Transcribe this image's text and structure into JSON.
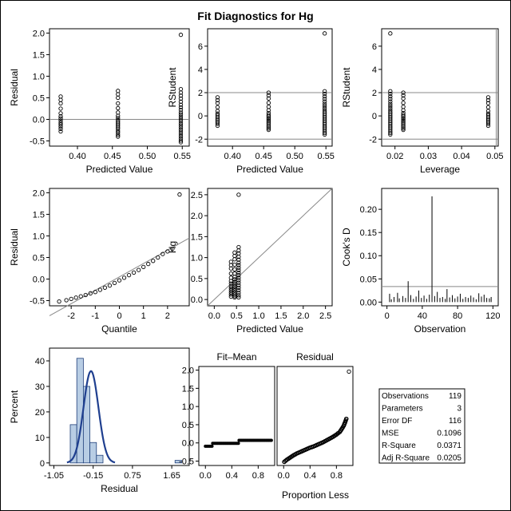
{
  "title": "Fit Diagnostics for Hg",
  "chart_data": [
    {
      "type": "scatter",
      "id": "residual_vs_predicted",
      "xlabel": "Predicted Value",
      "ylabel": "Residual",
      "xlim": [
        0.36,
        0.56
      ],
      "ylim": [
        -0.62,
        2.1
      ],
      "xticks": [
        "0.40",
        "0.45",
        "0.50",
        "0.55"
      ],
      "yticks": [
        "-0.5",
        "0.0",
        "0.5",
        "1.0",
        "1.5",
        "2.0"
      ],
      "reference_lines": {
        "y": [
          0
        ]
      },
      "groups": [
        {
          "x": 0.376,
          "y": [
            0.53,
            0.45,
            0.37,
            0.25,
            0.14,
            0.07,
            0.02,
            -0.03,
            -0.08,
            -0.12,
            -0.17,
            -0.22,
            -0.28
          ]
        },
        {
          "x": 0.458,
          "y": [
            0.66,
            0.58,
            0.5,
            0.37,
            0.26,
            0.16,
            0.08,
            0.03,
            -0.02,
            -0.06,
            -0.1,
            -0.14,
            -0.18,
            -0.22,
            -0.27,
            -0.31,
            -0.36,
            -0.4
          ]
        },
        {
          "x": 0.548,
          "y": [
            1.96,
            0.7,
            0.62,
            0.55,
            0.48,
            0.41,
            0.34,
            0.28,
            0.22,
            0.16,
            0.11,
            0.06,
            0.01,
            -0.04,
            -0.09,
            -0.14,
            -0.19,
            -0.24,
            -0.29,
            -0.34,
            -0.39,
            -0.44,
            -0.49,
            -0.53
          ]
        }
      ]
    },
    {
      "type": "scatter",
      "id": "rstudent_vs_predicted",
      "xlabel": "Predicted Value",
      "ylabel": "RStudent",
      "xlim": [
        0.36,
        0.56
      ],
      "ylim": [
        -2.6,
        7.5
      ],
      "xticks": [
        "0.40",
        "0.45",
        "0.50",
        "0.55"
      ],
      "yticks": [
        "-2",
        "0",
        "2",
        "4",
        "6"
      ],
      "reference_lines": {
        "y": [
          -2,
          2
        ]
      },
      "groups": [
        {
          "x": 0.376,
          "y": [
            1.6,
            1.35,
            1.1,
            0.75,
            0.42,
            0.2,
            0.05,
            -0.1,
            -0.25,
            -0.38,
            -0.52,
            -0.68,
            -0.85
          ]
        },
        {
          "x": 0.458,
          "y": [
            2.0,
            1.76,
            1.5,
            1.12,
            0.78,
            0.48,
            0.25,
            0.08,
            -0.05,
            -0.18,
            -0.3,
            -0.42,
            -0.55,
            -0.68,
            -0.82,
            -0.95,
            -1.08,
            -1.2
          ]
        },
        {
          "x": 0.548,
          "y": [
            7.1,
            2.12,
            1.9,
            1.68,
            1.46,
            1.24,
            1.03,
            0.85,
            0.67,
            0.49,
            0.33,
            0.18,
            0.03,
            -0.12,
            -0.27,
            -0.42,
            -0.57,
            -0.72,
            -0.87,
            -1.02,
            -1.17,
            -1.32,
            -1.47,
            -1.6
          ]
        }
      ]
    },
    {
      "type": "scatter",
      "id": "rstudent_vs_leverage",
      "xlabel": "Leverage",
      "ylabel": "RStudent",
      "xlim": [
        0.016,
        0.051
      ],
      "ylim": [
        -2.6,
        7.5
      ],
      "xticks": [
        "0.02",
        "0.03",
        "0.04",
        "0.05"
      ],
      "yticks": [
        "-2",
        "0",
        "2",
        "4",
        "6"
      ],
      "reference_lines": {
        "y": [
          -2,
          2
        ],
        "x": [
          0.0504
        ]
      },
      "groups": [
        {
          "x": 0.0186,
          "y": [
            7.1,
            2.12,
            1.9,
            1.68,
            1.46,
            1.24,
            1.03,
            0.85,
            0.67,
            0.49,
            0.33,
            0.18,
            0.03,
            -0.12,
            -0.27,
            -0.42,
            -0.57,
            -0.72,
            -0.87,
            -1.02,
            -1.17,
            -1.32,
            -1.47,
            -1.6
          ]
        },
        {
          "x": 0.0225,
          "y": [
            2.0,
            1.76,
            1.5,
            1.12,
            0.78,
            0.48,
            0.25,
            0.08,
            -0.05,
            -0.18,
            -0.3,
            -0.42,
            -0.55,
            -0.68,
            -0.82,
            -0.95,
            -1.08,
            -1.2
          ]
        },
        {
          "x": 0.048,
          "y": [
            1.6,
            1.35,
            1.1,
            0.75,
            0.42,
            0.2,
            0.05,
            -0.1,
            -0.25,
            -0.38,
            -0.52,
            -0.68,
            -0.85
          ]
        }
      ]
    },
    {
      "type": "scatter",
      "id": "residual_qq",
      "xlabel": "Quantile",
      "ylabel": "Residual",
      "xlim": [
        -2.9,
        2.9
      ],
      "ylim": [
        -0.62,
        2.1
      ],
      "xticks": [
        "-2",
        "-1",
        "0",
        "1",
        "2"
      ],
      "yticks": [
        "-0.5",
        "0.0",
        "0.5",
        "1.0",
        "1.5",
        "2.0"
      ],
      "reference_line": {
        "from": [
          -2.9,
          -0.85
        ],
        "to": [
          2.9,
          0.95
        ]
      },
      "points": [
        [
          -2.5,
          -0.52
        ],
        [
          -2.2,
          -0.49
        ],
        [
          -2.0,
          -0.46
        ],
        [
          -1.8,
          -0.43
        ],
        [
          -1.6,
          -0.4
        ],
        [
          -1.4,
          -0.37
        ],
        [
          -1.2,
          -0.33
        ],
        [
          -1.0,
          -0.3
        ],
        [
          -0.8,
          -0.25
        ],
        [
          -0.6,
          -0.2
        ],
        [
          -0.4,
          -0.15
        ],
        [
          -0.2,
          -0.09
        ],
        [
          0.0,
          -0.03
        ],
        [
          0.2,
          0.03
        ],
        [
          0.4,
          0.09
        ],
        [
          0.6,
          0.15
        ],
        [
          0.8,
          0.21
        ],
        [
          1.0,
          0.28
        ],
        [
          1.2,
          0.35
        ],
        [
          1.4,
          0.42
        ],
        [
          1.6,
          0.5
        ],
        [
          1.8,
          0.58
        ],
        [
          2.0,
          0.64
        ],
        [
          2.2,
          0.7
        ],
        [
          2.5,
          1.96
        ]
      ]
    },
    {
      "type": "scatter",
      "id": "observed_vs_predicted",
      "xlabel": "Predicted Value",
      "ylabel": "Hg",
      "xlim": [
        -0.15,
        2.65
      ],
      "ylim": [
        -0.15,
        2.65
      ],
      "xticks": [
        "0.0",
        "0.5",
        "1.0",
        "1.5",
        "2.0",
        "2.5"
      ],
      "yticks": [
        "0.0",
        "0.5",
        "1.0",
        "1.5",
        "2.0",
        "2.5"
      ],
      "reference_line": {
        "from": [
          -0.15,
          -0.15
        ],
        "to": [
          2.65,
          2.65
        ]
      },
      "groups": [
        {
          "x": 0.376,
          "y": [
            0.9,
            0.82,
            0.74,
            0.62,
            0.52,
            0.44,
            0.38,
            0.32,
            0.27,
            0.22,
            0.17,
            0.12,
            0.07
          ]
        },
        {
          "x": 0.458,
          "y": [
            1.12,
            1.04,
            0.96,
            0.83,
            0.72,
            0.62,
            0.54,
            0.48,
            0.42,
            0.37,
            0.32,
            0.27,
            0.22,
            0.17,
            0.12,
            0.08,
            0.05
          ]
        },
        {
          "x": 0.548,
          "y": [
            2.5,
            1.25,
            1.17,
            1.1,
            1.02,
            0.95,
            0.88,
            0.82,
            0.76,
            0.7,
            0.64,
            0.58,
            0.52,
            0.46,
            0.4,
            0.34,
            0.28,
            0.22,
            0.16,
            0.1,
            0.05
          ]
        }
      ]
    },
    {
      "type": "bar",
      "id": "cooks_d",
      "xlabel": "Observation",
      "ylabel": "Cook's D",
      "xlim": [
        -6,
        126
      ],
      "ylim": [
        -0.008,
        0.245
      ],
      "xticks": [
        "0",
        "40",
        "80",
        "120"
      ],
      "yticks": [
        "0.00",
        "0.05",
        "0.10",
        "0.15",
        "0.20"
      ],
      "reference_lines": {
        "y": [
          0.0336
        ]
      },
      "spikes": [
        [
          3,
          0.018
        ],
        [
          5,
          0.006
        ],
        [
          8,
          0.011
        ],
        [
          12,
          0.02
        ],
        [
          14,
          0.008
        ],
        [
          18,
          0.013
        ],
        [
          21,
          0.009
        ],
        [
          24,
          0.045
        ],
        [
          27,
          0.015
        ],
        [
          30,
          0.007
        ],
        [
          33,
          0.012
        ],
        [
          36,
          0.025
        ],
        [
          39,
          0.009
        ],
        [
          42,
          0.014
        ],
        [
          45,
          0.007
        ],
        [
          48,
          0.016
        ],
        [
          51,
          0.228
        ],
        [
          54,
          0.013
        ],
        [
          57,
          0.022
        ],
        [
          60,
          0.009
        ],
        [
          63,
          0.011
        ],
        [
          66,
          0.007
        ],
        [
          68,
          0.028
        ],
        [
          71,
          0.01
        ],
        [
          74,
          0.015
        ],
        [
          77,
          0.008
        ],
        [
          80,
          0.012
        ],
        [
          83,
          0.018
        ],
        [
          86,
          0.007
        ],
        [
          89,
          0.011
        ],
        [
          92,
          0.009
        ],
        [
          95,
          0.014
        ],
        [
          98,
          0.01
        ],
        [
          101,
          0.006
        ],
        [
          104,
          0.019
        ],
        [
          107,
          0.012
        ],
        [
          110,
          0.016
        ],
        [
          113,
          0.009
        ],
        [
          116,
          0.008
        ],
        [
          118,
          0.011
        ]
      ]
    },
    {
      "type": "bar",
      "id": "residual_histogram",
      "xlabel": "Residual",
      "ylabel": "Percent",
      "xlim": [
        -1.15,
        2.05
      ],
      "ylim": [
        -1,
        45
      ],
      "xticks": [
        "-1.05",
        "-0.15",
        "0.75",
        "1.65"
      ],
      "yticks": [
        "0",
        "10",
        "20",
        "30",
        "40"
      ],
      "bin_width": 0.15,
      "bins": [
        [
          -0.6,
          15
        ],
        [
          -0.45,
          41
        ],
        [
          -0.3,
          30
        ],
        [
          -0.15,
          8
        ],
        [
          0.0,
          3
        ],
        [
          0.15,
          0
        ],
        [
          0.3,
          0
        ],
        [
          0.45,
          0
        ],
        [
          0.6,
          0
        ],
        [
          0.75,
          0
        ],
        [
          0.9,
          0
        ],
        [
          1.05,
          0
        ],
        [
          1.2,
          0
        ],
        [
          1.35,
          0
        ],
        [
          1.5,
          0
        ],
        [
          1.65,
          0
        ],
        [
          1.8,
          1
        ]
      ],
      "density_curve": {
        "mean": -0.2,
        "sd": 0.17,
        "scale": 36
      }
    },
    {
      "type": "scatter",
      "id": "fit_mean",
      "title": "Fit–Mean",
      "xlim": [
        -0.1,
        1.05
      ],
      "ylim": [
        -0.62,
        2.1
      ],
      "xticks": [
        "0.0",
        "0.4",
        "0.8"
      ],
      "yticks": [
        "-0.5",
        "0.0",
        "0.5",
        "1.0",
        "1.5",
        "2.0"
      ],
      "steps": [
        [
          0.0,
          0.1,
          -0.09
        ],
        [
          0.11,
          0.5,
          -0.01
        ],
        [
          0.51,
          1.0,
          0.07
        ]
      ]
    },
    {
      "type": "scatter",
      "id": "residual_spread",
      "title": "Residual",
      "xlim": [
        -0.1,
        1.05
      ],
      "ylim": [
        -0.62,
        2.1
      ],
      "xticks": [
        "0.0",
        "0.4",
        "0.8"
      ],
      "points": [
        [
          0.01,
          -0.52
        ],
        [
          0.05,
          -0.46
        ],
        [
          0.1,
          -0.4
        ],
        [
          0.15,
          -0.34
        ],
        [
          0.2,
          -0.29
        ],
        [
          0.25,
          -0.25
        ],
        [
          0.3,
          -0.21
        ],
        [
          0.35,
          -0.17
        ],
        [
          0.4,
          -0.13
        ],
        [
          0.45,
          -0.1
        ],
        [
          0.5,
          -0.06
        ],
        [
          0.55,
          -0.02
        ],
        [
          0.6,
          0.02
        ],
        [
          0.65,
          0.07
        ],
        [
          0.7,
          0.12
        ],
        [
          0.75,
          0.17
        ],
        [
          0.8,
          0.23
        ],
        [
          0.85,
          0.3
        ],
        [
          0.88,
          0.38
        ],
        [
          0.91,
          0.47
        ],
        [
          0.93,
          0.56
        ],
        [
          0.95,
          0.66
        ],
        [
          0.99,
          1.96
        ]
      ]
    }
  ],
  "shared_xlabel": "Proportion Less",
  "stats_table": [
    {
      "label": "Observations",
      "value": "119"
    },
    {
      "label": "Parameters",
      "value": "3"
    },
    {
      "label": "Error DF",
      "value": "116"
    },
    {
      "label": "MSE",
      "value": "0.1096"
    },
    {
      "label": "R-Square",
      "value": "0.0371"
    },
    {
      "label": "Adj R-Square",
      "value": "0.0205"
    }
  ]
}
